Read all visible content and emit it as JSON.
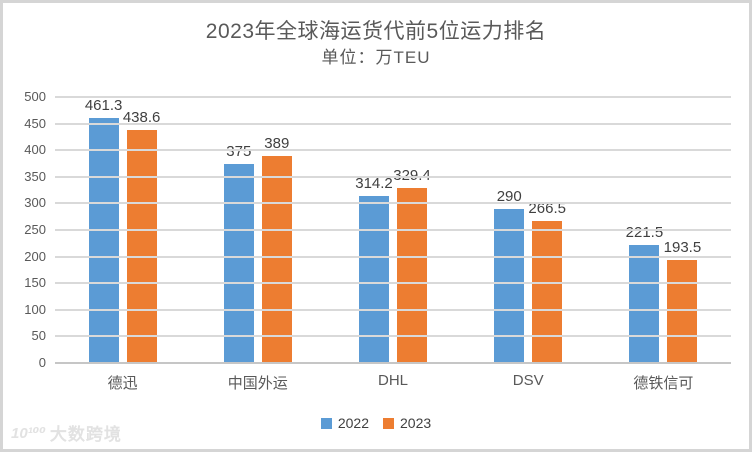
{
  "chart_data": {
    "type": "bar",
    "title": "2023年全球海运货代前5位运力排名",
    "subtitle": "单位：万TEU",
    "categories": [
      "德迅",
      "中国外运",
      "DHL",
      "DSV",
      "德铁信可"
    ],
    "series": [
      {
        "name": "2022",
        "color": "#5B9BD5",
        "values": [
          461.3,
          375,
          314.2,
          290,
          221.5
        ]
      },
      {
        "name": "2023",
        "color": "#ED7D31",
        "values": [
          438.6,
          389,
          329.4,
          266.5,
          193.5
        ]
      }
    ],
    "ylim": [
      0,
      500
    ],
    "ytick_step": 50,
    "grid": true,
    "legend_position": "bottom",
    "xlabel": "",
    "ylabel": ""
  },
  "colors": {
    "series_2022": "#5B9BD5",
    "series_2023": "#ED7D31",
    "gridline": "#d9d9d9",
    "axis_text": "#595959",
    "data_label": "#404040",
    "frame_border": "#d5d5d5"
  },
  "watermark": {
    "logo": "10¹⁰⁰",
    "text": "大数跨境"
  }
}
